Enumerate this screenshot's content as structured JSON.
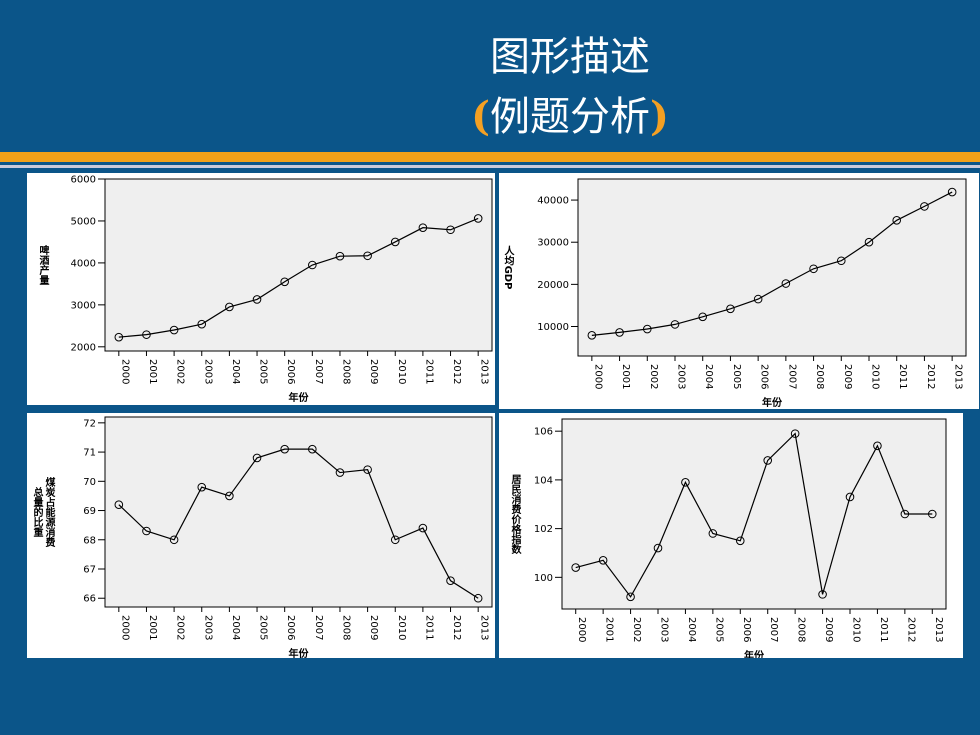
{
  "slide": {
    "title": "图形描述",
    "subtitle_open": "(",
    "subtitle_text": "例题分析",
    "subtitle_close": ")"
  },
  "colors": {
    "background": "#0b5589",
    "stripe": "#f2a119",
    "plot_bg": "#efefef"
  },
  "chart_data": [
    {
      "type": "line",
      "xlabel": "年份",
      "ylabel": "啤酒产量",
      "categories": [
        "2000",
        "2001",
        "2002",
        "2003",
        "2004",
        "2005",
        "2006",
        "2007",
        "2008",
        "2009",
        "2010",
        "2011",
        "2012",
        "2013"
      ],
      "series": [
        {
          "values": [
            2230,
            2290,
            2400,
            2540,
            2950,
            3130,
            3550,
            3950,
            4160,
            4170,
            4500,
            4840,
            4790,
            5060
          ]
        }
      ],
      "ylim": [
        1900,
        6000
      ],
      "yticks": [
        2000,
        3000,
        4000,
        5000,
        6000
      ],
      "yticklabels": [
        "2000",
        "3000",
        "4000",
        "5000",
        "6000"
      ]
    },
    {
      "type": "line",
      "xlabel": "年份",
      "ylabel": "人均GDP",
      "categories": [
        "2000",
        "2001",
        "2002",
        "2003",
        "2004",
        "2005",
        "2006",
        "2007",
        "2008",
        "2009",
        "2010",
        "2011",
        "2012",
        "2013"
      ],
      "series": [
        {
          "values": [
            7900,
            8600,
            9400,
            10500,
            12300,
            14200,
            16500,
            20200,
            23700,
            25600,
            30000,
            35200,
            38500,
            41900
          ]
        }
      ],
      "ylim": [
        3000,
        45000
      ],
      "yticks": [
        10000,
        20000,
        30000,
        40000
      ],
      "yticklabels": [
        "10000",
        "20000",
        "30000",
        "40000"
      ]
    },
    {
      "type": "line",
      "xlabel": "年份",
      "ylabel": "煤炭占能源消费总量的比重",
      "ylabel_lines": [
        "总量的比重",
        "煤炭占能源消费"
      ],
      "categories": [
        "2000",
        "2001",
        "2002",
        "2003",
        "2004",
        "2005",
        "2006",
        "2007",
        "2008",
        "2009",
        "2010",
        "2011",
        "2012",
        "2013"
      ],
      "series": [
        {
          "values": [
            69.2,
            68.3,
            68.0,
            69.8,
            69.5,
            70.8,
            71.1,
            71.1,
            70.3,
            70.4,
            68.0,
            68.4,
            66.6,
            66.0
          ]
        }
      ],
      "ylim": [
        65.7,
        72.2
      ],
      "yticks": [
        66,
        67,
        68,
        69,
        70,
        71,
        72
      ],
      "yticklabels": [
        "66",
        "67",
        "68",
        "69",
        "70",
        "71",
        "72"
      ]
    },
    {
      "type": "line",
      "xlabel": "年份",
      "ylabel": "居民消费价格指数",
      "categories": [
        "2000",
        "2001",
        "2002",
        "2003",
        "2004",
        "2005",
        "2006",
        "2007",
        "2008",
        "2009",
        "2010",
        "2011",
        "2012",
        "2013"
      ],
      "series": [
        {
          "values": [
            100.4,
            100.7,
            99.2,
            101.2,
            103.9,
            101.8,
            101.5,
            104.8,
            105.9,
            99.3,
            103.3,
            105.4,
            102.6,
            102.6
          ]
        }
      ],
      "ylim": [
        98.7,
        106.5
      ],
      "yticks": [
        100,
        102,
        104,
        106
      ],
      "yticklabels": [
        "100",
        "102",
        "104",
        "106"
      ]
    }
  ]
}
